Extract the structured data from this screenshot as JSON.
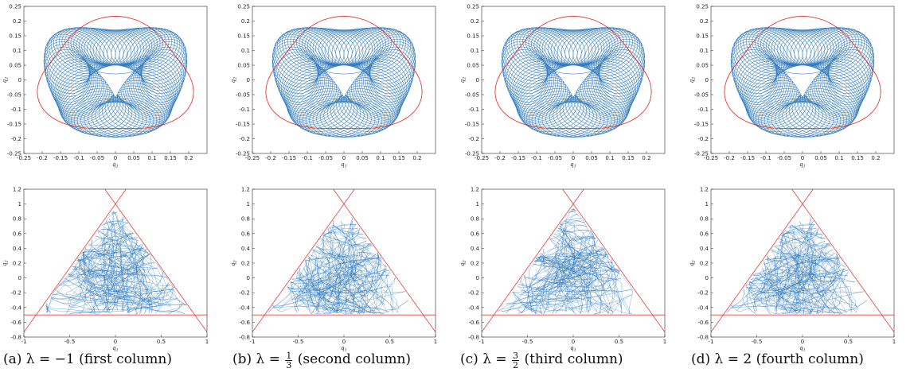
{
  "chart_data": [
    {
      "type": "line",
      "panel": "a-top",
      "xlabel": "q1",
      "ylabel": "q2",
      "xlim": [
        -0.25,
        0.25
      ],
      "ylim": [
        -0.25,
        0.25
      ],
      "xticks": [
        "-0.25",
        "-0.2",
        "-0.15",
        "-0.1",
        "-0.05",
        "0",
        "0.05",
        "0.1",
        "0.15",
        "0.2"
      ],
      "yticks": [
        "0.25",
        "0.2",
        "0.15",
        "0.1",
        "0.05",
        "0",
        "-0.05",
        "-0.1",
        "-0.15",
        "-0.2",
        "-0.25"
      ],
      "series_colors": {
        "trajectory": "#1f6fb8",
        "boundary": "#e8221c"
      }
    },
    {
      "type": "line",
      "panel": "b-top",
      "xlabel": "q1",
      "ylabel": "q2",
      "xlim": [
        -0.25,
        0.25
      ],
      "ylim": [
        -0.25,
        0.25
      ],
      "xticks": [
        "-0.25",
        "-0.2",
        "-0.15",
        "-0.1",
        "-0.05",
        "0",
        "0.05",
        "0.1",
        "0.15",
        "0.2"
      ],
      "yticks": [
        "0.25",
        "0.2",
        "0.15",
        "0.1",
        "0.05",
        "0",
        "-0.05",
        "-0.1",
        "-0.15",
        "-0.2",
        "-0.25"
      ]
    },
    {
      "type": "line",
      "panel": "c-top",
      "xlabel": "q1",
      "ylabel": "q2",
      "xlim": [
        -0.25,
        0.25
      ],
      "ylim": [
        -0.25,
        0.25
      ],
      "xticks": [
        "-0.25",
        "-0.2",
        "-0.15",
        "-0.1",
        "-0.05",
        "0",
        "0.05",
        "0.1",
        "0.15",
        "0.2"
      ],
      "yticks": [
        "0.25",
        "0.2",
        "0.15",
        "0.1",
        "0.05",
        "0",
        "-0.05",
        "-0.1",
        "-0.15",
        "-0.2",
        "-0.25"
      ]
    },
    {
      "type": "line",
      "panel": "d-top",
      "xlabel": "q1",
      "ylabel": "q2",
      "xlim": [
        -0.25,
        0.25
      ],
      "ylim": [
        -0.25,
        0.25
      ],
      "xticks": [
        "-0.25",
        "-0.2",
        "-0.15",
        "-0.1",
        "-0.05",
        "0",
        "0.05",
        "0.1",
        "0.15",
        "0.2"
      ],
      "yticks": [
        "0.25",
        "0.2",
        "0.15",
        "0.1",
        "0.05",
        "0",
        "-0.05",
        "-0.1",
        "-0.15",
        "-0.2",
        "-0.25"
      ]
    },
    {
      "type": "line",
      "panel": "a-bottom",
      "xlabel": "q1",
      "ylabel": "q2",
      "xlim": [
        -1,
        1
      ],
      "ylim": [
        -0.8,
        1.2
      ],
      "xticks": [
        "-1",
        "-0.5",
        "0",
        "0.5",
        "1"
      ],
      "yticks": [
        "1.2",
        "1",
        "0.8",
        "0.6",
        "0.4",
        "0.2",
        "0",
        "-0.2",
        "-0.4",
        "-0.6",
        "-0.8"
      ],
      "triangle_lines": {
        "bottom_y": -0.5,
        "apex_y": 1.0
      }
    },
    {
      "type": "line",
      "panel": "b-bottom",
      "xlabel": "q1",
      "ylabel": "q2",
      "xlim": [
        -1,
        1
      ],
      "ylim": [
        -0.8,
        1.2
      ],
      "xticks": [
        "-1",
        "-0.5",
        "0",
        "0.5",
        "1"
      ],
      "yticks": [
        "1.2",
        "1",
        "0.8",
        "0.6",
        "0.4",
        "0.2",
        "0",
        "-0.2",
        "-0.4",
        "-0.6",
        "-0.8"
      ],
      "triangle_lines": {
        "bottom_y": -0.5,
        "apex_y": 1.0
      }
    },
    {
      "type": "line",
      "panel": "c-bottom",
      "xlabel": "q1",
      "ylabel": "q2",
      "xlim": [
        -1,
        1
      ],
      "ylim": [
        -0.8,
        1.2
      ],
      "xticks": [
        "-1",
        "-0.5",
        "0",
        "0.5",
        "1"
      ],
      "yticks": [
        "1.2",
        "1",
        "0.8",
        "0.6",
        "0.4",
        "0.2",
        "0",
        "-0.2",
        "-0.4",
        "-0.6",
        "-0.8"
      ],
      "triangle_lines": {
        "bottom_y": -0.5,
        "apex_y": 1.0
      }
    },
    {
      "type": "line",
      "panel": "d-bottom",
      "xlabel": "q1",
      "ylabel": "q2",
      "xlim": [
        -1,
        1
      ],
      "ylim": [
        -0.8,
        1.2
      ],
      "xticks": [
        "-1",
        "-0.5",
        "0",
        "0.5",
        "1"
      ],
      "yticks": [
        "1.2",
        "1",
        "0.8",
        "0.6",
        "0.4",
        "0.2",
        "0",
        "-0.2",
        "-0.4",
        "-0.6",
        "-0.8"
      ],
      "triangle_lines": {
        "bottom_y": -0.5,
        "apex_y": 1.0
      }
    }
  ],
  "captions": {
    "a": {
      "prefix": "(a)  λ = −1",
      "suffix": "(first column)"
    },
    "b": {
      "prefix": "(b)  λ =",
      "num": "1",
      "den": "3",
      "suffix": "(second column)"
    },
    "c": {
      "prefix": "(c)  λ =",
      "num": "3",
      "den": "2",
      "suffix": "(third column)"
    },
    "d": {
      "prefix": "(d)  λ = 2",
      "suffix": "(fourth column)"
    }
  }
}
